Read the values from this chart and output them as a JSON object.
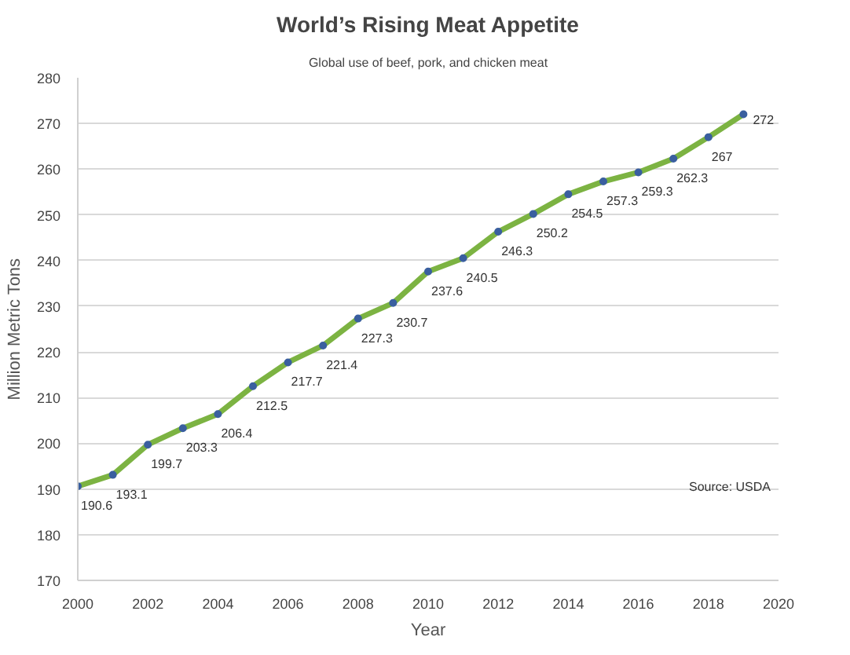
{
  "chart_data": {
    "type": "line",
    "title": "World’s Rising Meat Appetite",
    "subtitle": "Global use of beef, pork, and chicken meat",
    "xlabel": "Year",
    "ylabel": "Million Metric Tons",
    "x": [
      2000,
      2001,
      2002,
      2003,
      2004,
      2005,
      2006,
      2007,
      2008,
      2009,
      2010,
      2011,
      2012,
      2013,
      2014,
      2015,
      2016,
      2017,
      2018,
      2019
    ],
    "series": [
      {
        "color": "#7cb342",
        "values": [
          190.6,
          193.1,
          199.7,
          203.3,
          206.4,
          212.5,
          217.7,
          221.4,
          227.3,
          230.7,
          237.6,
          240.5,
          246.3,
          250.2,
          254.5,
          257.3,
          259.3,
          262.3,
          267,
          272
        ]
      }
    ],
    "xlim": [
      2000,
      2020
    ],
    "xticks": [
      2000,
      2002,
      2004,
      2006,
      2008,
      2010,
      2012,
      2014,
      2016,
      2018,
      2020
    ],
    "ylim": [
      170,
      280
    ],
    "yticks": [
      170,
      180,
      190,
      200,
      210,
      220,
      230,
      240,
      250,
      260,
      270,
      280
    ],
    "grid": "y",
    "marker": "circle",
    "data_labels": true,
    "annotations": [
      "Source: USDA"
    ]
  }
}
